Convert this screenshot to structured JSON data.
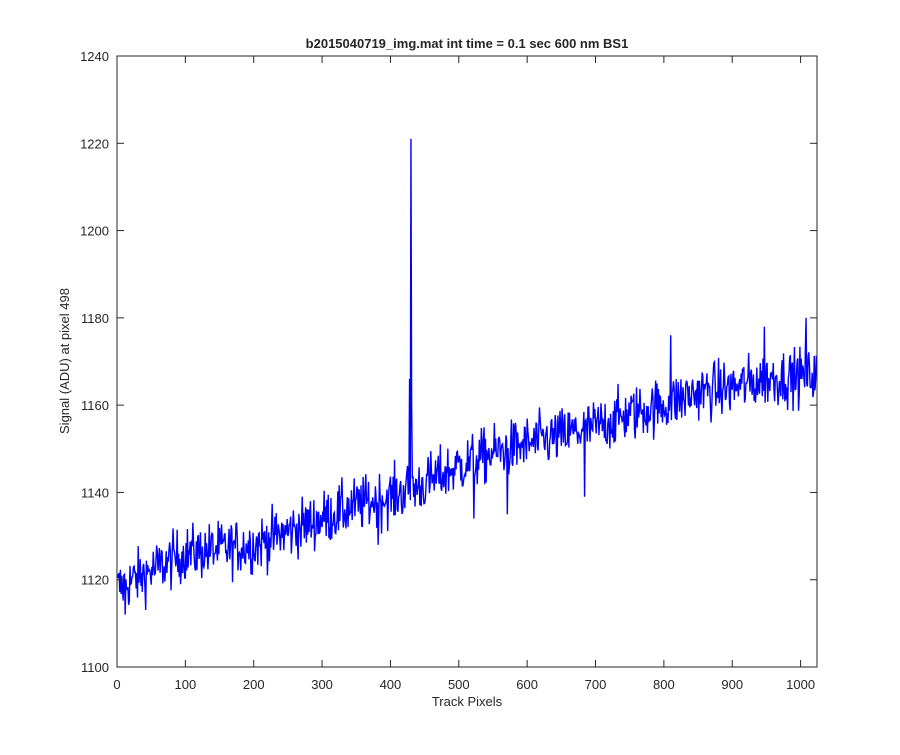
{
  "colors": {
    "background": "#ffffff",
    "axes": "#262626",
    "series": "#0000ff"
  },
  "chart_data": {
    "type": "line",
    "title": "b2015040719_img.mat int time = 0.1 sec  600 nm BS1",
    "xlabel": "Track Pixels",
    "ylabel": "Signal (ADU) at pixel 498",
    "xlim": [
      0,
      1024
    ],
    "ylim": [
      1100,
      1240
    ],
    "xticks": [
      0,
      100,
      200,
      300,
      400,
      500,
      600,
      700,
      800,
      900,
      1000
    ],
    "yticks": [
      1100,
      1120,
      1140,
      1160,
      1180,
      1200,
      1220,
      1240
    ],
    "grid": false,
    "legend": "none",
    "series": [
      {
        "color": "#0000ff",
        "x_start": 1,
        "x_step": 1,
        "trend": {
          "x": [
            0,
            50,
            100,
            150,
            200,
            250,
            300,
            350,
            400,
            450,
            500,
            550,
            600,
            650,
            700,
            750,
            800,
            850,
            900,
            950,
            1024
          ],
          "y": [
            1118,
            1122,
            1126,
            1127,
            1128,
            1131,
            1134,
            1137,
            1139,
            1142,
            1146,
            1149,
            1151,
            1153,
            1155,
            1158,
            1160,
            1163,
            1164,
            1166,
            1167
          ]
        },
        "noise_amplitude": 3.2,
        "spikes": [
          {
            "x": 428,
            "y": 1166
          },
          {
            "x": 430,
            "y": 1221
          },
          {
            "x": 431,
            "y": 1160
          },
          {
            "x": 947,
            "y": 1178
          },
          {
            "x": 1008,
            "y": 1180
          },
          {
            "x": 810,
            "y": 1176
          },
          {
            "x": 382,
            "y": 1128
          },
          {
            "x": 522,
            "y": 1134
          },
          {
            "x": 571,
            "y": 1135
          },
          {
            "x": 684,
            "y": 1139
          },
          {
            "x": 12,
            "y": 1112
          }
        ]
      }
    ]
  }
}
